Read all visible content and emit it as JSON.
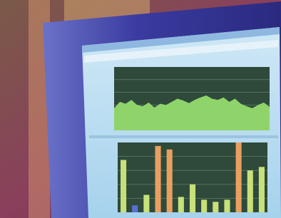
{
  "screen": {
    "upper_chart": {
      "type": "area",
      "color": "#8fd46a",
      "ylim": [
        0,
        100
      ],
      "values": [
        35,
        45,
        42,
        48,
        40,
        38,
        44,
        36,
        42,
        40,
        45,
        50,
        47,
        43,
        48,
        52,
        55,
        50,
        48,
        52,
        45,
        50,
        42,
        38,
        35,
        40,
        44,
        37
      ]
    },
    "lower_chart": {
      "type": "bar",
      "ylim": [
        0,
        100
      ],
      "values": [
        75,
        10,
        25,
        95,
        90,
        22,
        40,
        18,
        15,
        18,
        100,
        60,
        65
      ],
      "colors": [
        "#c8e07a",
        "#5a6fd0",
        "#c8e07a",
        "#e8a060",
        "#e8a060",
        "#c8e07a",
        "#c8e07a",
        "#c8e07a",
        "#c8e07a",
        "#c8e07a",
        "#e8a060",
        "#c8e07a",
        "#c8e07a"
      ]
    }
  }
}
